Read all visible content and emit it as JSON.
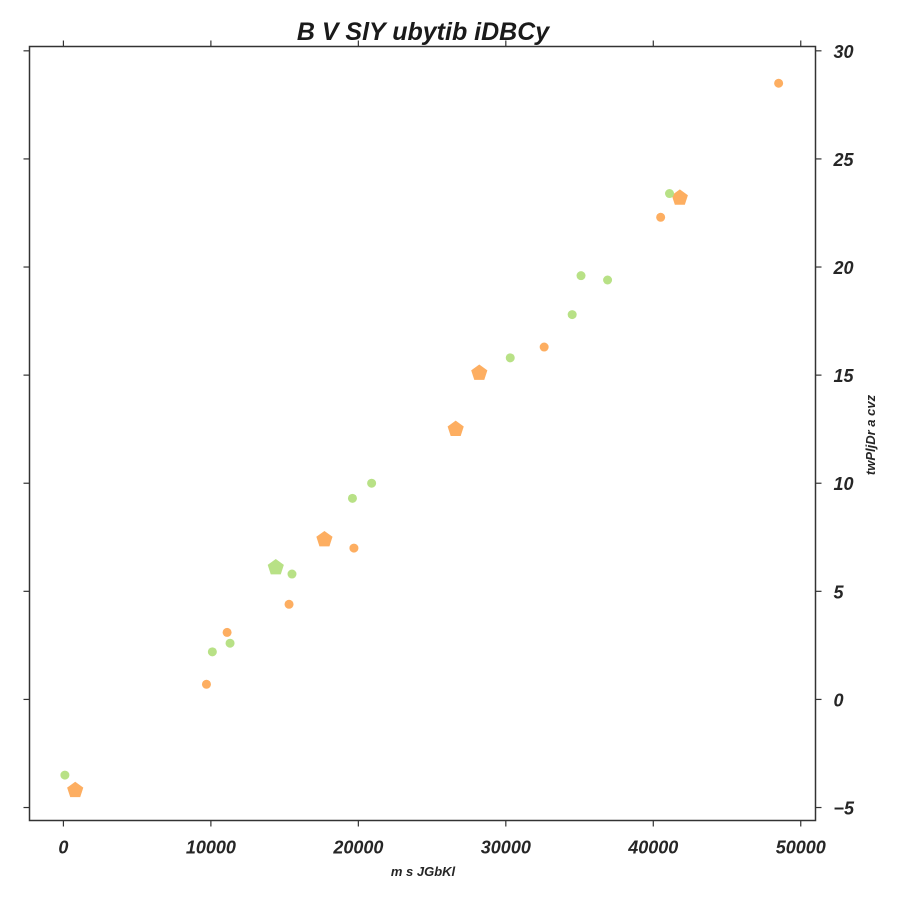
{
  "chart_data": {
    "type": "scatter",
    "title": "B   V SlY ubytib iDBCy",
    "xlabel": "m s JGbKl",
    "ylabel": "twPljDr a cvz",
    "xlim": [
      -2300,
      51000
    ],
    "ylim": [
      -5.6,
      30.2
    ],
    "x_ticks": [
      0,
      10000,
      20000,
      30000,
      40000,
      50000
    ],
    "x_tick_labels": [
      "0",
      "10000",
      "20000",
      "30000",
      "40000",
      "50000"
    ],
    "y_ticks": [
      -5,
      0,
      5,
      10,
      15,
      20,
      25,
      30
    ],
    "y_tick_labels": [
      "−5",
      "0",
      "5",
      "10",
      "15",
      "20",
      "25",
      "30"
    ],
    "y_axis_side": "right",
    "grid": false,
    "legend": false,
    "series": [
      {
        "color": "#fdae61",
        "points": [
          {
            "x": 9700,
            "y": 0.7,
            "marker": "circle"
          },
          {
            "x": 11100,
            "y": 3.1,
            "marker": "circle"
          },
          {
            "x": 15300,
            "y": 4.4,
            "marker": "circle"
          },
          {
            "x": 19700,
            "y": 7.0,
            "marker": "circle"
          },
          {
            "x": 32600,
            "y": 16.3,
            "marker": "circle"
          },
          {
            "x": 40500,
            "y": 22.3,
            "marker": "circle"
          },
          {
            "x": 48500,
            "y": 28.5,
            "marker": "circle"
          },
          {
            "x": 800,
            "y": -4.2,
            "marker": "pentagon"
          },
          {
            "x": 17700,
            "y": 7.4,
            "marker": "pentagon"
          },
          {
            "x": 26600,
            "y": 12.5,
            "marker": "pentagon"
          },
          {
            "x": 28200,
            "y": 15.1,
            "marker": "pentagon"
          },
          {
            "x": 41800,
            "y": 23.2,
            "marker": "pentagon"
          }
        ]
      },
      {
        "color": "#b8e186",
        "points": [
          {
            "x": 100,
            "y": -3.5,
            "marker": "circle"
          },
          {
            "x": 10100,
            "y": 2.2,
            "marker": "circle"
          },
          {
            "x": 11300,
            "y": 2.6,
            "marker": "circle"
          },
          {
            "x": 15500,
            "y": 5.8,
            "marker": "circle"
          },
          {
            "x": 19600,
            "y": 9.3,
            "marker": "circle"
          },
          {
            "x": 20900,
            "y": 10.0,
            "marker": "circle"
          },
          {
            "x": 30300,
            "y": 15.8,
            "marker": "circle"
          },
          {
            "x": 34500,
            "y": 17.8,
            "marker": "circle"
          },
          {
            "x": 35100,
            "y": 19.6,
            "marker": "circle"
          },
          {
            "x": 36900,
            "y": 19.4,
            "marker": "circle"
          },
          {
            "x": 41100,
            "y": 23.4,
            "marker": "circle"
          },
          {
            "x": 14400,
            "y": 6.1,
            "marker": "pentagon"
          }
        ]
      }
    ]
  }
}
